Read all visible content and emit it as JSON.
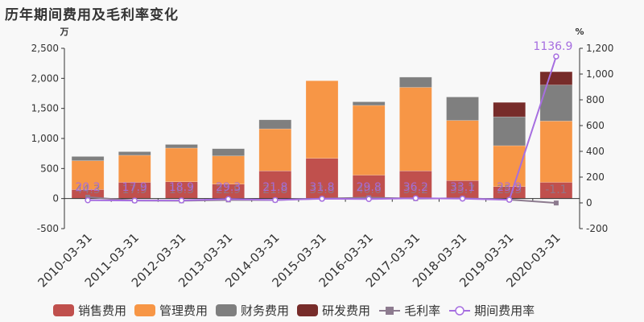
{
  "title": "历年期间费用及毛利率变化",
  "left_axis_unit": "万",
  "right_axis_unit": "%",
  "chart_data": {
    "type": "bar",
    "stacked": true,
    "title": "历年期间费用及毛利率变化",
    "categories": [
      "2010-03-31",
      "2011-03-31",
      "2012-03-31",
      "2013-03-31",
      "2014-03-31",
      "2015-03-31",
      "2016-03-31",
      "2017-03-31",
      "2018-03-31",
      "2019-03-31",
      "2020-03-31"
    ],
    "series": [
      {
        "name": "销售费用",
        "type": "bar",
        "axis": "left",
        "color": "#c0504d",
        "values": [
          150,
          270,
          280,
          240,
          460,
          670,
          390,
          460,
          300,
          200,
          270
        ]
      },
      {
        "name": "管理费用",
        "type": "bar",
        "axis": "left",
        "color": "#f79646",
        "values": [
          480,
          450,
          560,
          470,
          700,
          1290,
          1160,
          1390,
          1000,
          680,
          1020
        ]
      },
      {
        "name": "财务费用",
        "type": "bar",
        "axis": "left",
        "color": "#7f7f7f",
        "values": [
          70,
          60,
          60,
          120,
          150,
          0,
          60,
          170,
          390,
          480,
          600
        ]
      },
      {
        "name": "研发费用",
        "type": "bar",
        "axis": "left",
        "color": "#772c2a",
        "values": [
          0,
          0,
          0,
          0,
          0,
          0,
          0,
          0,
          0,
          240,
          220
        ]
      },
      {
        "name": "毛利率",
        "type": "line",
        "axis": "right",
        "color": "#8d7b8f",
        "marker": "square",
        "values": [
          44.3,
          17.9,
          16.3,
          22.9,
          21.8,
          33.8,
          40.6,
          33.2,
          35.7,
          25.3,
          -1.1
        ]
      },
      {
        "name": "期间费用率",
        "type": "line",
        "axis": "right",
        "color": "#a66ee0",
        "marker": "circle",
        "values": [
          20.2,
          17.9,
          18.9,
          29.3,
          21.8,
          31.8,
          29.8,
          36.2,
          33.1,
          23.9,
          1136.9
        ]
      }
    ],
    "left_axis": {
      "unit": "万",
      "min": -500,
      "max": 2500,
      "ticks": [
        "-500",
        "0",
        "500",
        "1,000",
        "1,500",
        "2,000",
        "2,500"
      ]
    },
    "right_axis": {
      "unit": "%",
      "min": -200,
      "max": 1200,
      "ticks": [
        "-200",
        "0",
        "200",
        "400",
        "600",
        "800",
        "1,000",
        "1,200"
      ]
    },
    "grid": false,
    "legend_position": "bottom"
  },
  "legend": [
    {
      "label": "销售费用",
      "color": "#c0504d",
      "kind": "box"
    },
    {
      "label": "管理费用",
      "color": "#f79646",
      "kind": "box"
    },
    {
      "label": "财务费用",
      "color": "#7f7f7f",
      "kind": "box"
    },
    {
      "label": "研发费用",
      "color": "#772c2a",
      "kind": "box"
    },
    {
      "label": "毛利率",
      "color": "#8d7b8f",
      "kind": "square-line"
    },
    {
      "label": "期间费用率",
      "color": "#a66ee0",
      "kind": "circle-line"
    }
  ]
}
